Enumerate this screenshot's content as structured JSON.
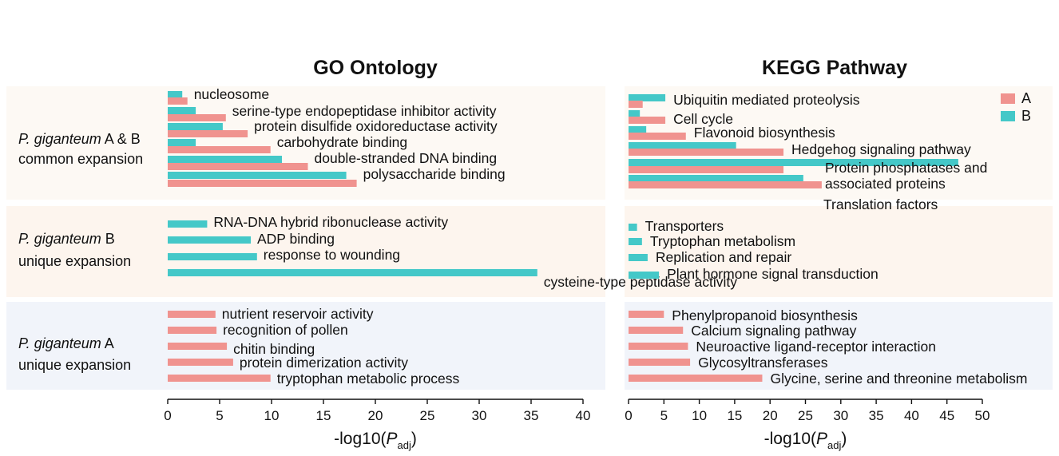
{
  "colors": {
    "A": "#f0938f",
    "B": "#44c8c8",
    "band_common": "#fdf9f4",
    "band_b": "#fdf5ee",
    "band_a": "#f1f4fa"
  },
  "groups": [
    {
      "line1_italic": "P. giganteum",
      "line1_rest": " A & B",
      "line2": "common expansion"
    },
    {
      "line1_italic": "P. giganteum",
      "line1_rest": " B",
      "line2": "unique expansion"
    },
    {
      "line1_italic": "P. giganteum",
      "line1_rest": " A",
      "line2": "unique expansion"
    }
  ],
  "chart_data": [
    {
      "type": "bar",
      "orientation": "horizontal",
      "title": "GO Ontology",
      "xlabel_main": "-log10(",
      "xlabel_italic": "P",
      "xlabel_sub": "adj",
      "xlabel_close": ")",
      "xlim": [
        0,
        40
      ],
      "xticks": [
        0,
        5,
        10,
        15,
        20,
        25,
        30,
        35,
        40
      ],
      "sections": [
        {
          "group": 0,
          "items": [
            {
              "label": "nucleosome",
              "A": 1.9,
              "B": 1.4
            },
            {
              "label": "serine-type endopeptidase inhibitor activity",
              "A": 5.6,
              "B": 2.7
            },
            {
              "label": "protein disulfide oxidoreductase activity",
              "A": 7.7,
              "B": 5.3
            },
            {
              "label": "carbohydrate binding",
              "A": 9.9,
              "B": 2.7
            },
            {
              "label": "double-stranded DNA binding",
              "A": 13.5,
              "B": 11.0
            },
            {
              "label": "polysaccharide binding",
              "A": 18.2,
              "B": 17.2
            }
          ]
        },
        {
          "group": 1,
          "items": [
            {
              "label": "RNA-DNA hybrid ribonuclease activity",
              "B": 3.8
            },
            {
              "label": "ADP binding",
              "B": 8.0
            },
            {
              "label": "response to wounding",
              "B": 8.6
            },
            {
              "label": "cysteine-type peptidase activity",
              "B": 35.6
            }
          ]
        },
        {
          "group": 2,
          "items": [
            {
              "label": "nutrient reservoir activity",
              "A": 4.6
            },
            {
              "label": "recognition of pollen",
              "A": 4.7
            },
            {
              "label": "chitin binding",
              "A": 5.7
            },
            {
              "label": "protein dimerization activity",
              "A": 6.3
            },
            {
              "label": "tryptophan metabolic process",
              "A": 9.9
            }
          ]
        }
      ]
    },
    {
      "type": "bar",
      "orientation": "horizontal",
      "title": "KEGG Pathway",
      "xlabel_main": "-log10(",
      "xlabel_italic": "P",
      "xlabel_sub": "adj",
      "xlabel_close": ")",
      "xlim": [
        0,
        50
      ],
      "xticks": [
        0,
        5,
        10,
        15,
        20,
        25,
        30,
        35,
        40,
        45,
        50
      ],
      "legend": [
        {
          "key": "A",
          "label": "A"
        },
        {
          "key": "B",
          "label": "B"
        }
      ],
      "legend_position": "top-right",
      "sections": [
        {
          "group": 0,
          "items": [
            {
              "label": "Ubiquitin mediated proteolysis",
              "A": 2.0,
              "B": 5.2
            },
            {
              "label": "Cell cycle",
              "A": 5.2,
              "B": 1.6
            },
            {
              "label": "Flavonoid biosynthesis",
              "A": 8.1,
              "B": 2.5
            },
            {
              "label": "Hedgehog signaling pathway",
              "A": 21.9,
              "B": 15.2
            },
            {
              "label": "Protein phosphatases and",
              "label2": "associated proteins",
              "A": 21.9,
              "B": 46.6
            },
            {
              "label": "Translation factors",
              "A": 27.3,
              "B": 24.7
            }
          ]
        },
        {
          "group": 1,
          "items": [
            {
              "label": "Transporters",
              "B": 1.2
            },
            {
              "label": "Tryptophan metabolism",
              "B": 1.9
            },
            {
              "label": "Replication and repair",
              "B": 2.7
            },
            {
              "label": "Plant hormone signal transduction",
              "B": 4.3
            }
          ]
        },
        {
          "group": 2,
          "items": [
            {
              "label": "Phenylpropanoid biosynthesis",
              "A": 5.0
            },
            {
              "label": "Calcium signaling pathway",
              "A": 7.7
            },
            {
              "label": "Neuroactive ligand-receptor interaction",
              "A": 8.4
            },
            {
              "label": "Glycosyltransferases",
              "A": 8.7
            },
            {
              "label": "Glycine, serine and threonine metabolism",
              "A": 18.9
            }
          ]
        }
      ]
    }
  ]
}
